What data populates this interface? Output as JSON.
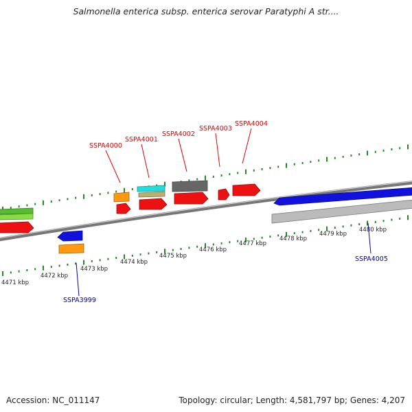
{
  "title": "Salmonella enterica subsp. enterica serovar Paratyphi A str....",
  "footer": {
    "accession": "Accession: NC_011147",
    "topology": "Topology: circular; Length: 4,581,797 bp; Genes: 4,207"
  },
  "colors": {
    "forward_label": "#dd0000",
    "reverse_label": "#0000aa",
    "tick": "#228822",
    "backbone": "#777777",
    "cds_red": "#ee1111",
    "cds_blue": "#1111dd",
    "cds_orange": "#ff9911",
    "cds_gray": "#666666",
    "cds_lightgray": "#bbbbbb",
    "cds_cyan": "#22dddd",
    "cds_khaki": "#b8b070",
    "cds_green": "#55bb33"
  },
  "kbp_labels": [
    "4471 kbp",
    "4472 kbp",
    "4473 kbp",
    "4474 kbp",
    "4475 kbp",
    "4476 kbp",
    "4477 kbp",
    "4478 kbp",
    "4479 kbp",
    "4480 kbp"
  ],
  "gene_labels_forward": [
    "SSPA4000",
    "SSPA4001",
    "SSPA4002",
    "SSPA4003",
    "SSPA4004"
  ],
  "gene_labels_reverse": [
    "SSPA3999",
    "SSPA4005"
  ]
}
